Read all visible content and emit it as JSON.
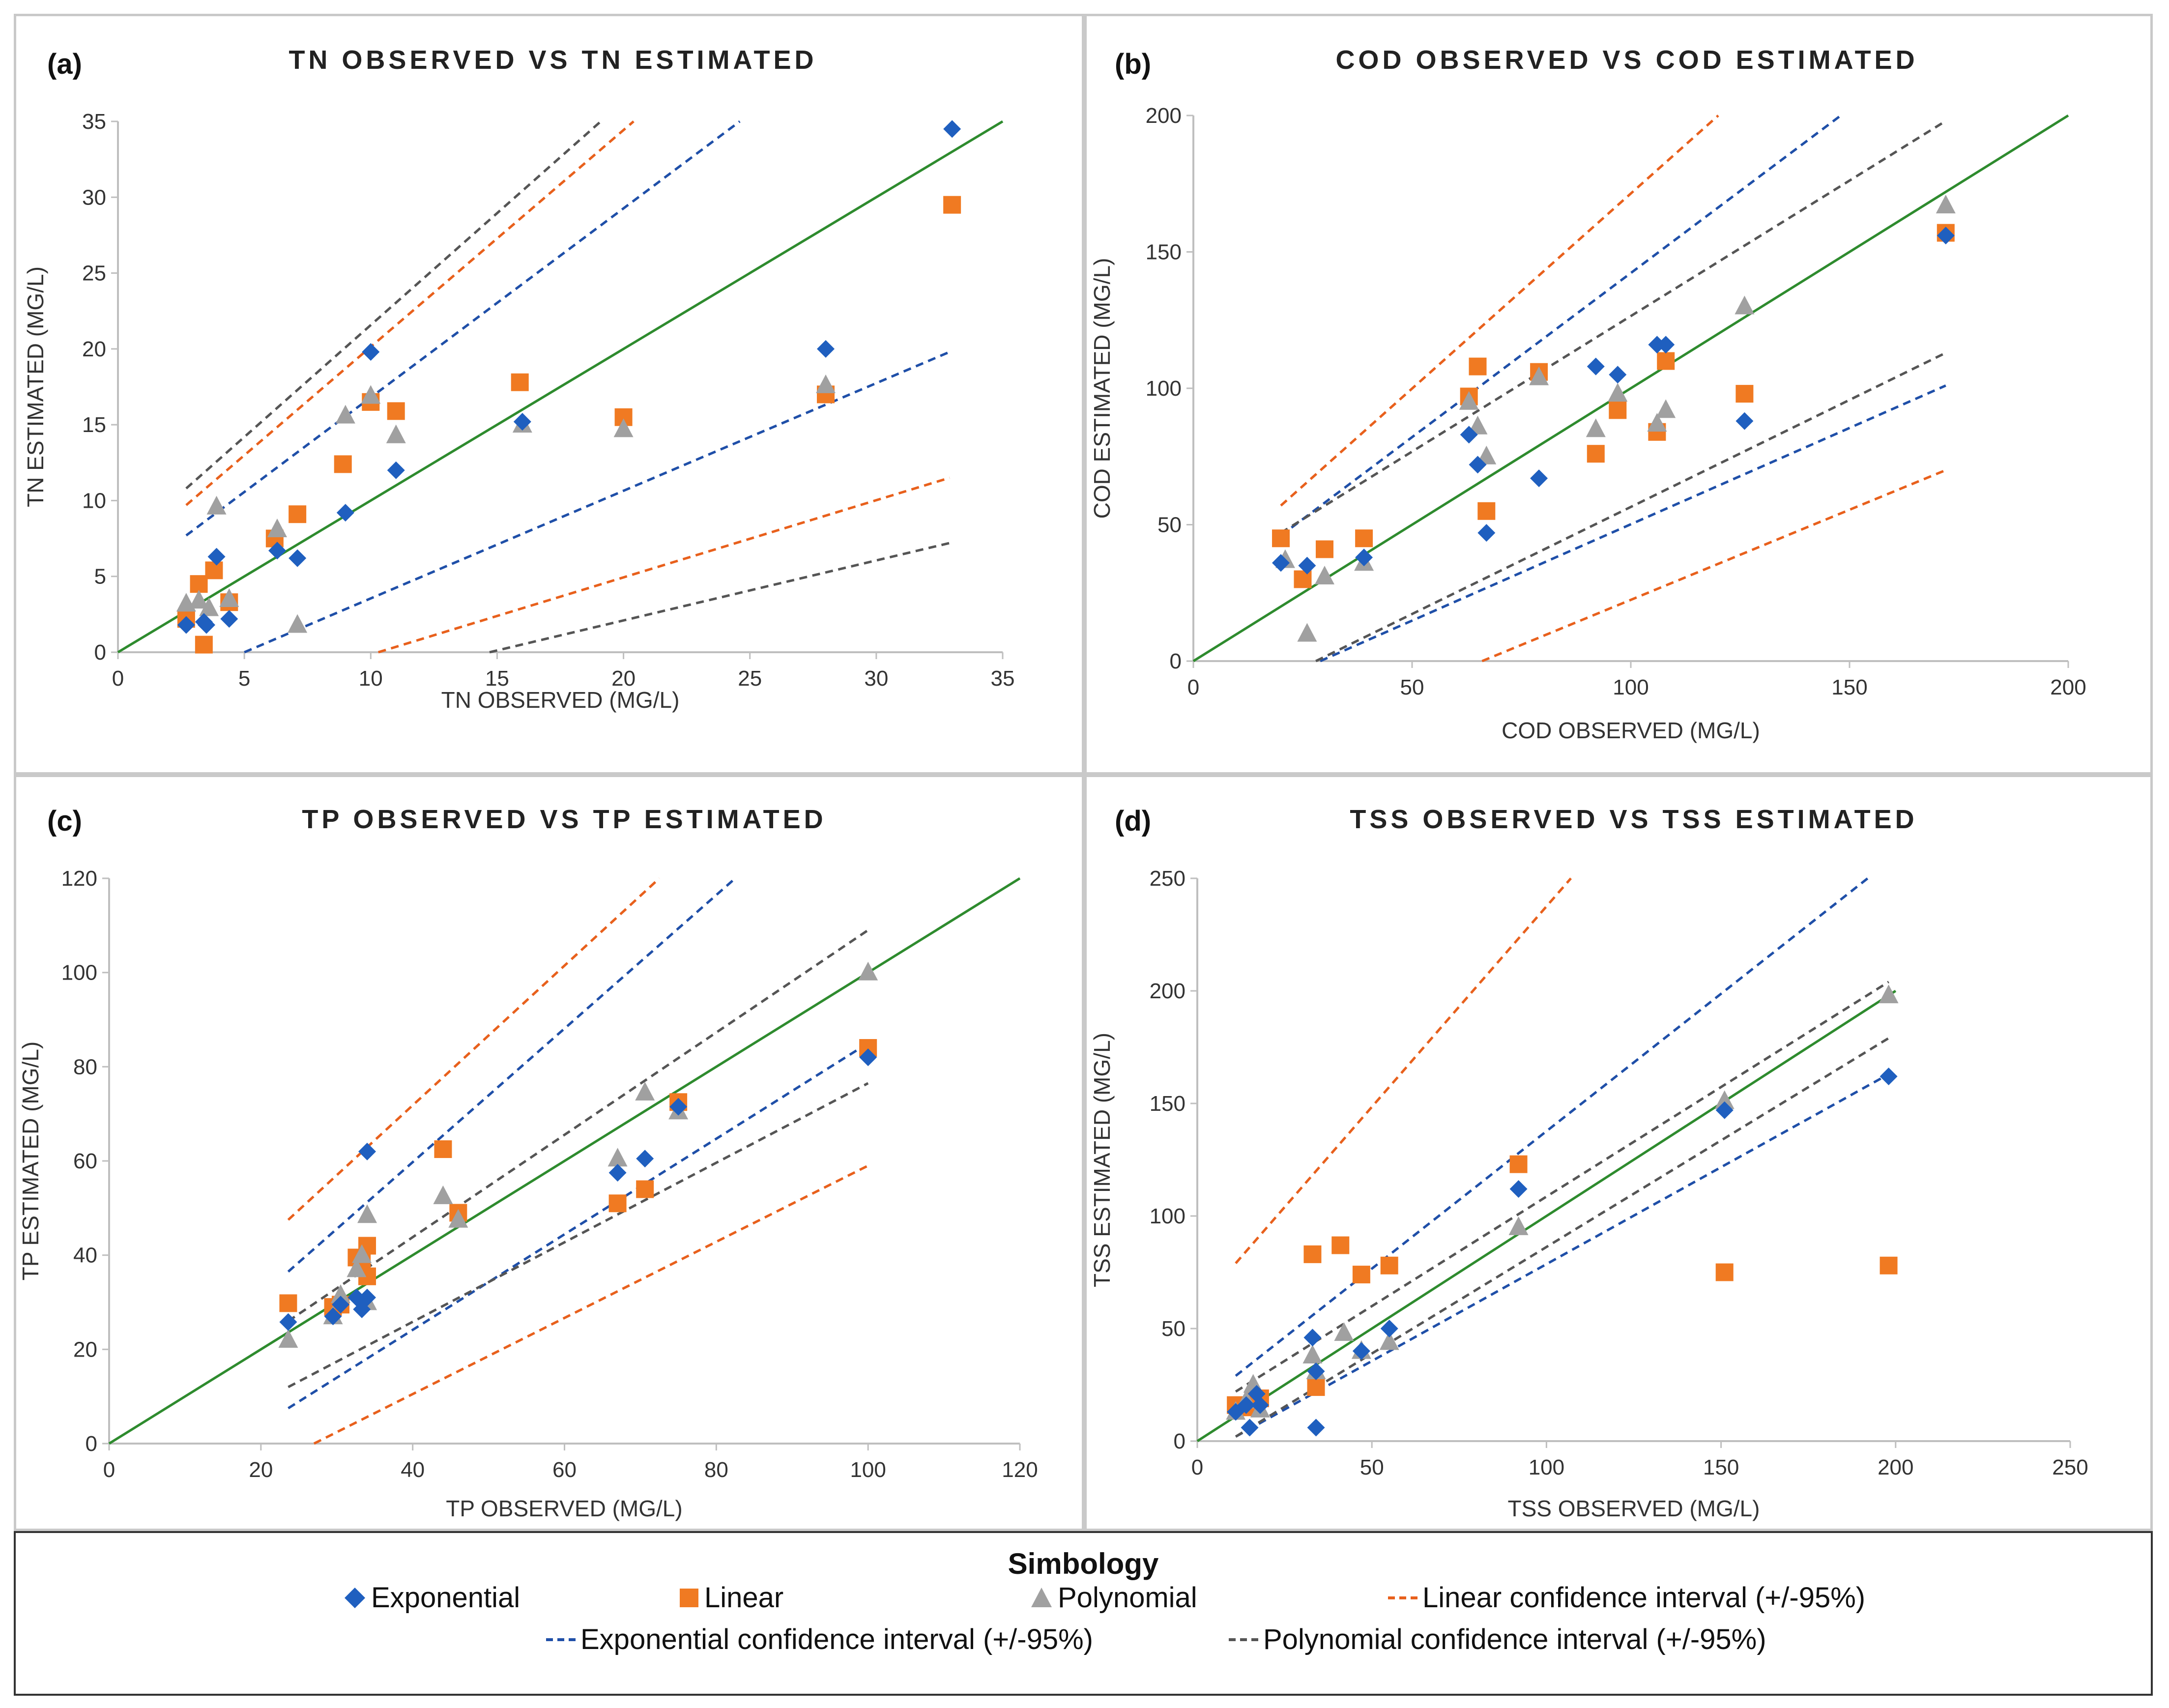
{
  "colors": {
    "exp": "#1f5fbf",
    "lin": "#f07a22",
    "poly": "#a0a0a0",
    "ideal": "#2e8b2e",
    "lin_ci": "#e8601c",
    "exp_ci": "#1f4fa8",
    "poly_ci": "#555555"
  },
  "legend": {
    "title": "Simbology",
    "exponential": "Exponential",
    "linear": "Linear",
    "polynomial": "Polynomial",
    "linear_ci": "Linear confidence interval (+/-95%)",
    "exponential_ci": "Exponential confidence interval (+/-95%)",
    "polynomial_ci": "Polynomial confidence interval (+/-95%)"
  },
  "chart_data": [
    {
      "type": "scatter",
      "letter": "(a)",
      "title": "TN OBSERVED VS TN ESTIMATED",
      "xlabel": "TN OBSERVED (MG/L)",
      "ylabel": "TN ESTIMATED (MG/L)",
      "xlim": [
        0,
        35
      ],
      "ylim": [
        0,
        35
      ],
      "xticks": [
        0,
        5,
        10,
        15,
        20,
        25,
        30,
        35
      ],
      "yticks": [
        0,
        5,
        10,
        15,
        20,
        25,
        30,
        35
      ],
      "ideal": [
        [
          0,
          0
        ],
        [
          35,
          35
        ]
      ],
      "series": [
        {
          "name": "Exponential",
          "points": [
            [
              2.7,
              1.8
            ],
            [
              3.4,
              2
            ],
            [
              3.5,
              1.8
            ],
            [
              3.9,
              6.3
            ],
            [
              4.4,
              2.2
            ],
            [
              6.3,
              6.7
            ],
            [
              7.1,
              6.2
            ],
            [
              9,
              9.2
            ],
            [
              10,
              19.8
            ],
            [
              11,
              12
            ],
            [
              16,
              15.2
            ],
            [
              28,
              20
            ],
            [
              33,
              34.5
            ]
          ]
        },
        {
          "name": "Linear",
          "points": [
            [
              2.7,
              2.2
            ],
            [
              3.2,
              4.5
            ],
            [
              3.4,
              0.5
            ],
            [
              3.8,
              5.4
            ],
            [
              4.4,
              3.3
            ],
            [
              6.2,
              7.5
            ],
            [
              7.1,
              9.1
            ],
            [
              8.9,
              12.4
            ],
            [
              10,
              16.5
            ],
            [
              11,
              15.9
            ],
            [
              15.9,
              17.8
            ],
            [
              20,
              15.5
            ],
            [
              28,
              17
            ],
            [
              33,
              29.5
            ]
          ]
        },
        {
          "name": "Polynomial",
          "points": [
            [
              2.7,
              3.2
            ],
            [
              3.2,
              3.4
            ],
            [
              3.6,
              2.9
            ],
            [
              3.9,
              9.6
            ],
            [
              4.4,
              3.5
            ],
            [
              6.3,
              8.1
            ],
            [
              7.1,
              1.8
            ],
            [
              9,
              15.6
            ],
            [
              10,
              16.9
            ],
            [
              11,
              14.3
            ],
            [
              16,
              15
            ],
            [
              20,
              14.7
            ],
            [
              28,
              17.6
            ]
          ]
        }
      ],
      "ci": [
        {
          "name": "Linear confidence interval (+/-95%)",
          "lines": [
            [
              [
                2.7,
                9.7
              ],
              [
                20.4,
                35
              ]
            ],
            [
              [
                10.3,
                0
              ],
              [
                32.9,
                11.5
              ]
            ]
          ]
        },
        {
          "name": "Exponential confidence interval (+/-95%)",
          "lines": [
            [
              [
                2.7,
                7.7
              ],
              [
                24.6,
                35
              ]
            ],
            [
              [
                5,
                0
              ],
              [
                32.9,
                19.8
              ]
            ]
          ]
        },
        {
          "name": "Polynomial confidence interval (+/-95%)",
          "lines": [
            [
              [
                2.7,
                10.8
              ],
              [
                19.1,
                35
              ]
            ],
            [
              [
                14.7,
                0
              ],
              [
                32.9,
                7.2
              ]
            ]
          ]
        }
      ]
    },
    {
      "type": "scatter",
      "letter": "(b)",
      "title": "COD OBSERVED VS COD ESTIMATED",
      "xlabel": "COD OBSERVED (MG/L)",
      "ylabel": "COD ESTIMATED (MG/L)",
      "xlim": [
        0,
        200
      ],
      "ylim": [
        0,
        200
      ],
      "xticks": [
        0,
        50,
        100,
        150,
        200
      ],
      "yticks": [
        0,
        50,
        100,
        150,
        200
      ],
      "ideal": [
        [
          0,
          0
        ],
        [
          200,
          200
        ]
      ],
      "series": [
        {
          "name": "Exponential",
          "points": [
            [
              20,
              36
            ],
            [
              26,
              35
            ],
            [
              39,
              38
            ],
            [
              63,
              83
            ],
            [
              65,
              72
            ],
            [
              67,
              47
            ],
            [
              79,
              67
            ],
            [
              92,
              108
            ],
            [
              97,
              105
            ],
            [
              106,
              116
            ],
            [
              108,
              116
            ],
            [
              126,
              88
            ],
            [
              172,
              156
            ]
          ]
        },
        {
          "name": "Linear",
          "points": [
            [
              20,
              45
            ],
            [
              25,
              30
            ],
            [
              30,
              41
            ],
            [
              39,
              45
            ],
            [
              63,
              97
            ],
            [
              65,
              108
            ],
            [
              67,
              55
            ],
            [
              79,
              106
            ],
            [
              92,
              76
            ],
            [
              97,
              92
            ],
            [
              106,
              84
            ],
            [
              108,
              110
            ],
            [
              126,
              98
            ],
            [
              172,
              157
            ]
          ]
        },
        {
          "name": "Polynomial",
          "points": [
            [
              21,
              37
            ],
            [
              26,
              10
            ],
            [
              30,
              31
            ],
            [
              39,
              36
            ],
            [
              63,
              95
            ],
            [
              65,
              86
            ],
            [
              67,
              75
            ],
            [
              79,
              104
            ],
            [
              92,
              85
            ],
            [
              97,
              98
            ],
            [
              106,
              87
            ],
            [
              108,
              92
            ],
            [
              126,
              130
            ],
            [
              172,
              167
            ]
          ]
        }
      ],
      "ci": [
        {
          "name": "Linear confidence interval (+/-95%)",
          "lines": [
            [
              [
                20,
                57
              ],
              [
                120,
                200
              ]
            ],
            [
              [
                66,
                0
              ],
              [
                172,
                70
              ]
            ]
          ]
        },
        {
          "name": "Exponential confidence interval (+/-95%)",
          "lines": [
            [
              [
                20,
                46
              ],
              [
                148,
                200
              ]
            ],
            [
              [
                29,
                0
              ],
              [
                172,
                101
              ]
            ]
          ]
        },
        {
          "name": "Polynomial confidence interval (+/-95%)",
          "lines": [
            [
              [
                20,
                47
              ],
              [
                172,
                198
              ]
            ],
            [
              [
                28,
                0
              ],
              [
                172,
                113
              ]
            ]
          ]
        }
      ]
    },
    {
      "type": "scatter",
      "letter": "(c)",
      "title": "TP OBSERVED VS TP ESTIMATED",
      "xlabel": "TP OBSERVED (MG/L)",
      "ylabel": "TP ESTIMATED  (MG/L)",
      "xlim": [
        0,
        120
      ],
      "ylim": [
        0,
        120
      ],
      "xticks": [
        0,
        20,
        40,
        60,
        80,
        100,
        120
      ],
      "yticks": [
        0,
        20,
        40,
        60,
        80,
        100,
        120
      ],
      "ideal": [
        [
          0,
          0
        ],
        [
          120,
          120
        ]
      ],
      "series": [
        {
          "name": "Exponential",
          "points": [
            [
              23.6,
              25.8
            ],
            [
              29.5,
              27
            ],
            [
              30.5,
              29.5
            ],
            [
              32.6,
              31
            ],
            [
              33.3,
              28.5
            ],
            [
              34,
              62
            ],
            [
              34,
              31
            ],
            [
              67,
              57.5
            ],
            [
              70.6,
              60.5
            ],
            [
              75,
              71.5
            ],
            [
              100,
              82
            ]
          ]
        },
        {
          "name": "Linear",
          "points": [
            [
              23.6,
              29.8
            ],
            [
              29.5,
              29
            ],
            [
              30.5,
              29.5
            ],
            [
              32.6,
              39.5
            ],
            [
              33.3,
              38.5
            ],
            [
              34,
              42
            ],
            [
              34,
              35.5
            ],
            [
              44,
              62.5
            ],
            [
              46,
              49
            ],
            [
              67,
              51
            ],
            [
              70.6,
              54
            ],
            [
              75,
              72.5
            ],
            [
              100,
              84
            ]
          ]
        },
        {
          "name": "Polynomial",
          "points": [
            [
              23.6,
              22
            ],
            [
              29.5,
              27
            ],
            [
              30.5,
              31.5
            ],
            [
              32.6,
              37
            ],
            [
              33.3,
              40
            ],
            [
              34,
              48.5
            ],
            [
              34,
              30
            ],
            [
              44,
              52.5
            ],
            [
              46,
              47.5
            ],
            [
              67,
              60.5
            ],
            [
              70.6,
              74.5
            ],
            [
              75,
              70.5
            ],
            [
              100,
              100
            ]
          ]
        }
      ],
      "ci": [
        {
          "name": "Linear confidence interval (+/-95%)",
          "lines": [
            [
              [
                23.6,
                47.5
              ],
              [
                72.5,
                120
              ]
            ],
            [
              [
                27,
                0
              ],
              [
                100,
                59
              ]
            ]
          ]
        },
        {
          "name": "Exponential confidence interval (+/-95%)",
          "lines": [
            [
              [
                23.6,
                36.5
              ],
              [
                82.5,
                120
              ]
            ],
            [
              [
                23.6,
                7.5
              ],
              [
                100,
                85
              ]
            ]
          ]
        },
        {
          "name": "Polynomial confidence interval (+/-95%)",
          "lines": [
            [
              [
                23.6,
                26
              ],
              [
                100,
                109
              ]
            ],
            [
              [
                23.6,
                12
              ],
              [
                100,
                76.5
              ]
            ]
          ]
        }
      ]
    },
    {
      "type": "scatter",
      "letter": "(d)",
      "title": "TSS OBSERVED VS TSS ESTIMATED",
      "xlabel": "TSS OBSERVED (MG/L)",
      "ylabel": "TSS ESTIMATED (MG/L)",
      "xlim": [
        0,
        250
      ],
      "ylim": [
        0,
        250
      ],
      "xticks": [
        0,
        50,
        100,
        150,
        200,
        250
      ],
      "yticks": [
        0,
        50,
        100,
        150,
        200,
        250
      ],
      "ideal": [
        [
          0,
          0
        ],
        [
          200,
          200
        ]
      ],
      "series": [
        {
          "name": "Exponential",
          "points": [
            [
              11,
              13
            ],
            [
              14,
              16
            ],
            [
              15,
              6
            ],
            [
              17,
              21
            ],
            [
              18,
              16
            ],
            [
              33,
              46
            ],
            [
              34,
              6
            ],
            [
              34,
              31
            ],
            [
              47,
              40
            ],
            [
              55,
              50
            ],
            [
              92,
              112
            ],
            [
              151,
              147
            ],
            [
              198,
              162
            ]
          ]
        },
        {
          "name": "Linear",
          "points": [
            [
              11,
              16
            ],
            [
              14,
              15
            ],
            [
              16,
              18
            ],
            [
              18,
              19
            ],
            [
              33,
              83
            ],
            [
              34,
              24
            ],
            [
              41,
              87
            ],
            [
              47,
              74
            ],
            [
              55,
              78
            ],
            [
              92,
              123
            ],
            [
              151,
              75
            ],
            [
              198,
              78
            ]
          ]
        },
        {
          "name": "Polynomial",
          "points": [
            [
              11,
              13
            ],
            [
              14,
              18
            ],
            [
              16,
              25
            ],
            [
              18,
              14
            ],
            [
              33,
              38
            ],
            [
              34,
              31
            ],
            [
              42,
              48
            ],
            [
              47,
              40
            ],
            [
              55,
              44
            ],
            [
              92,
              95
            ],
            [
              151,
              151
            ],
            [
              198,
              198
            ]
          ]
        }
      ],
      "ci": [
        {
          "name": "Linear confidence interval (+/-95%)",
          "lines": [
            [
              [
                11,
                79
              ],
              [
                107,
                250
              ]
            ]
          ]
        },
        {
          "name": "Exponential confidence interval (+/-95%)",
          "lines": [
            [
              [
                11,
                29
              ],
              [
                192,
                250
              ]
            ],
            [
              [
                11,
                2
              ],
              [
                198,
                163
              ]
            ]
          ]
        },
        {
          "name": "Polynomial confidence interval (+/-95%)",
          "lines": [
            [
              [
                11,
                22
              ],
              [
                198,
                204
              ]
            ],
            [
              [
                11,
                2
              ],
              [
                198,
                179
              ]
            ]
          ]
        }
      ]
    }
  ]
}
